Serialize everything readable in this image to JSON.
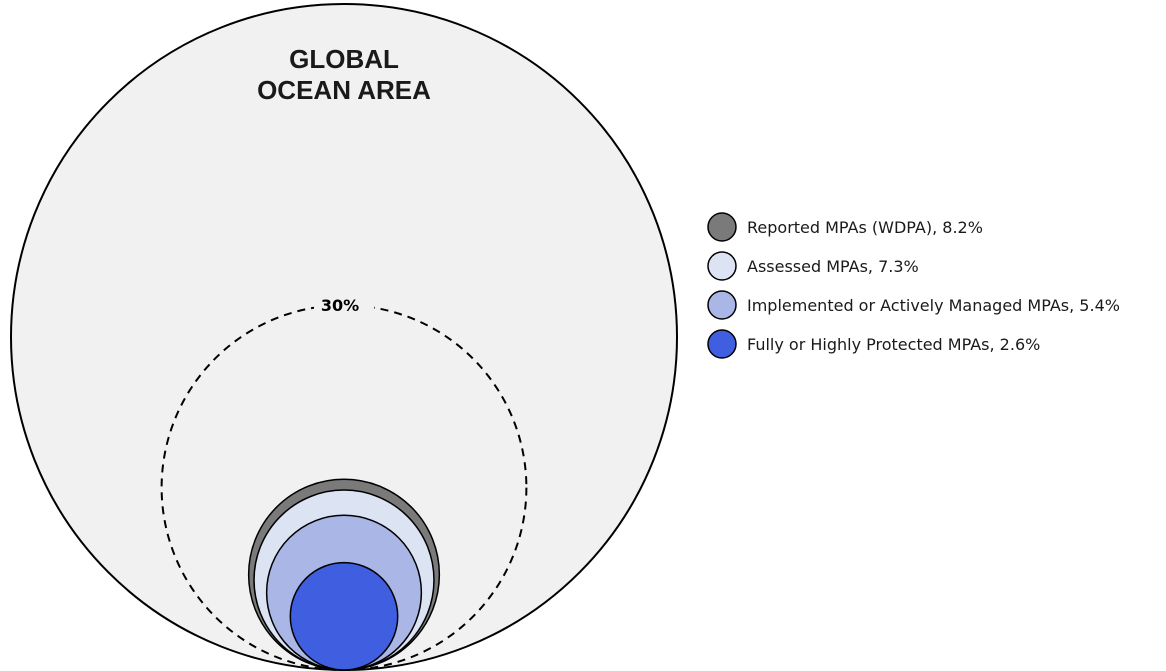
{
  "chart_data": {
    "type": "nested-circles",
    "title": [
      "GLOBAL",
      "OCEAN AREA"
    ],
    "whole": {
      "name": "Global ocean area",
      "value": 100,
      "color": "#f1f1f1"
    },
    "target": {
      "label": "30%",
      "value": 30
    },
    "series": [
      {
        "name": "Reported MPAs (WDPA), 8.2%",
        "value": 8.2,
        "color": "#7a7a7a"
      },
      {
        "name": "Assessed MPAs, 7.3%",
        "value": 7.3,
        "color": "#dce3f3"
      },
      {
        "name": "Implemented or Actively Managed MPAs, 5.4%",
        "value": 5.4,
        "color": "#a9b6e6"
      },
      {
        "name": "Fully or Highly Protected MPAs, 2.6%",
        "value": 2.6,
        "color": "#3f5ee0"
      }
    ],
    "legend_position": "right",
    "units": "percent of global ocean area"
  }
}
